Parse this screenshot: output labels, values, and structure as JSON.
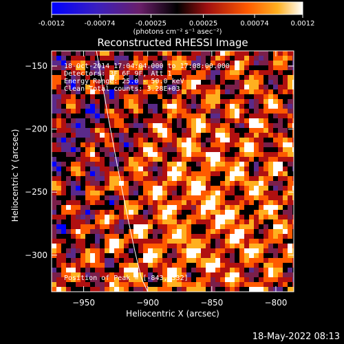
{
  "colorbar": {
    "ticks": [
      -0.0012,
      -0.00074,
      -0.00025,
      0.00025,
      0.00074,
      0.0012
    ],
    "tick_labels": [
      "-0.0012",
      "-0.00074",
      "-0.00025",
      "0.00025",
      "0.00074",
      "0.0012"
    ],
    "units_label": "(photons cm⁻² s⁻¹ asec⁻²)",
    "range": [
      -0.0012,
      0.0012
    ]
  },
  "chart_data": {
    "type": "heatmap",
    "title": "Reconstructed RHESSI Image",
    "xlabel": "Heliocentric X (arcsec)",
    "ylabel": "Heliocentric Y (arcsec)",
    "xlim": [
      -975,
      -786
    ],
    "ylim": [
      -329,
      -138
    ],
    "x_ticks": [
      -950,
      -900,
      -850,
      -800
    ],
    "y_ticks": [
      -150,
      -200,
      -250,
      -300
    ],
    "x_tick_labels": [
      "−950",
      "−900",
      "−850",
      "−800"
    ],
    "y_tick_labels": [
      "−150",
      "−200",
      "−250",
      "−300"
    ],
    "annotations": [
      "18-Oct-2014 17:04:04.000 to 17:08:00.000",
      "Detectors: 3F 6F 9F, Att 1",
      "Energy Range: 25.0 - 50.0 keV",
      "Clean    Total counts: 3.28E+03"
    ],
    "peak_label": "Position of Peak = [-843,-332]",
    "peak_position": [
      -843,
      -332
    ],
    "limb_curve": {
      "x": [
        -940,
        -935,
        -930,
        -925,
        -920,
        -915,
        -910,
        -905,
        -900
      ],
      "y": [
        -138,
        -167,
        -195,
        -222,
        -248,
        -273,
        -297,
        -318,
        -329
      ]
    }
  },
  "footer": {
    "date_stamp": "18-May-2022 08:13"
  },
  "colors": {
    "background": "#000000",
    "text": "#ffffff",
    "colormap": [
      "#0000ff",
      "#5a2a8a",
      "#7a1f4a",
      "#000000",
      "#b01010",
      "#ff5a00",
      "#ffb020",
      "#ffffff"
    ]
  }
}
